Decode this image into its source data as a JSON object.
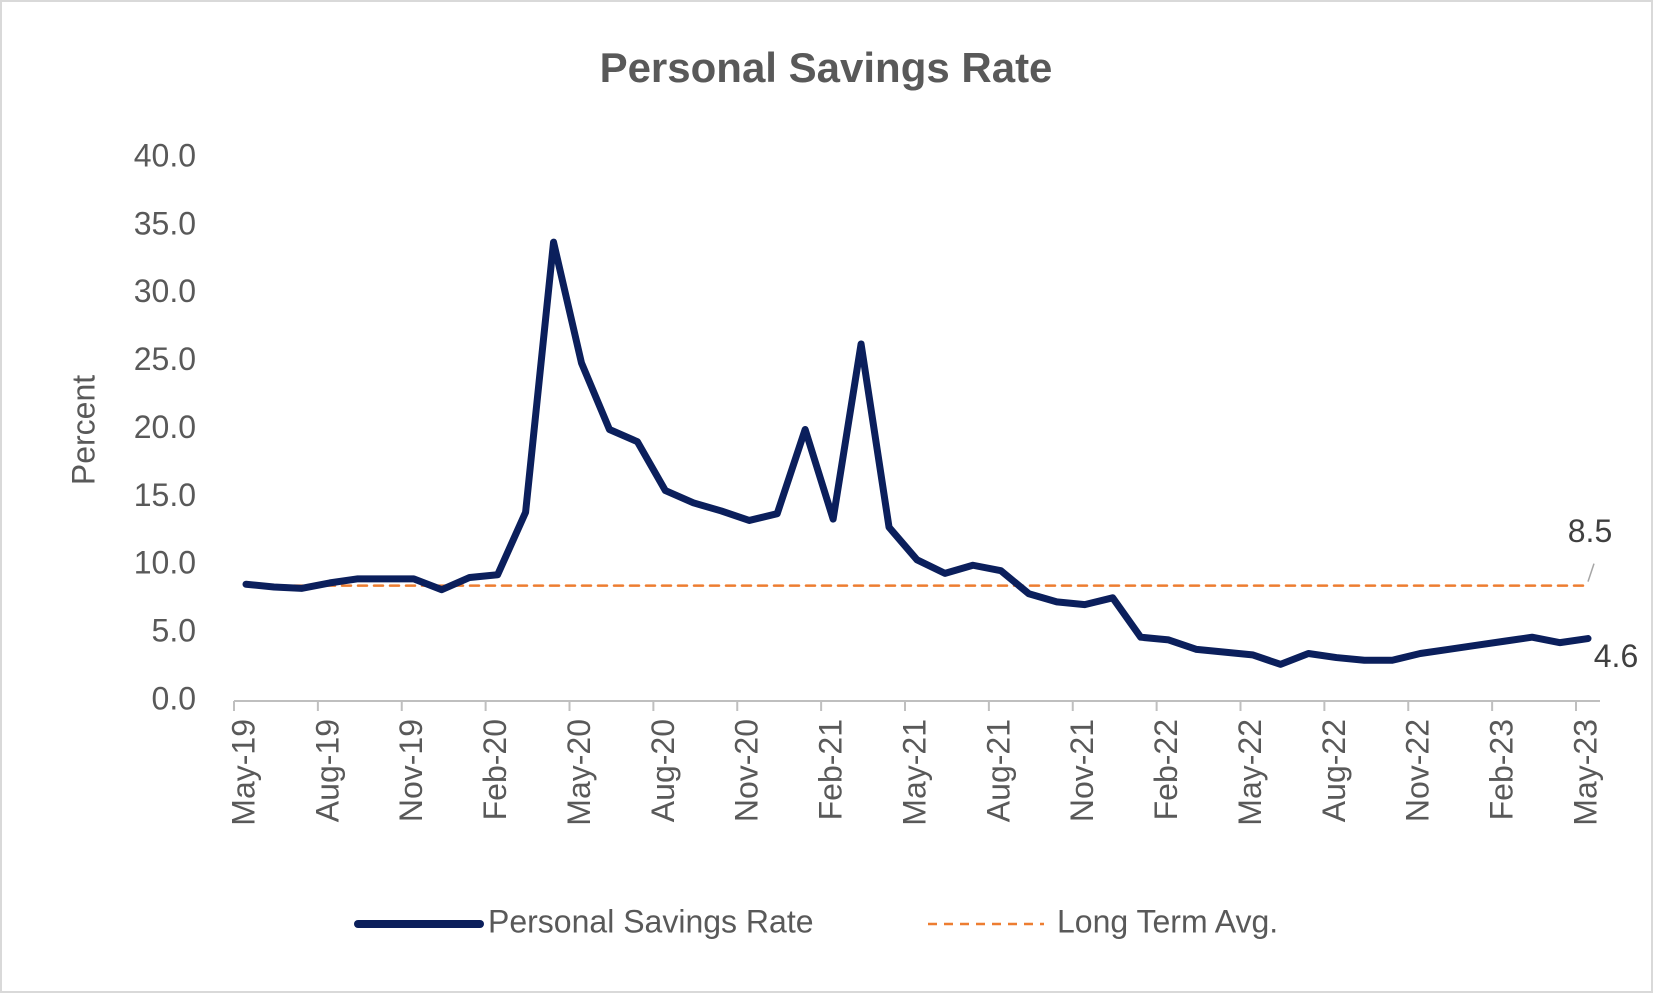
{
  "chart_data": {
    "type": "line",
    "title": "Personal Savings Rate",
    "y_label": "Percent",
    "categories": [
      "May-19",
      null,
      null,
      "Aug-19",
      null,
      null,
      "Nov-19",
      null,
      null,
      "Feb-20",
      null,
      null,
      "May-20",
      null,
      null,
      "Aug-20",
      null,
      null,
      "Nov-20",
      null,
      null,
      "Feb-21",
      null,
      null,
      "May-21",
      null,
      null,
      "Aug-21",
      null,
      null,
      "Nov-21",
      null,
      null,
      "Feb-22",
      null,
      null,
      "May-22",
      null,
      null,
      "Aug-22",
      null,
      null,
      "Nov-22",
      null,
      null,
      "Feb-23",
      null,
      null,
      "May-23"
    ],
    "series": [
      {
        "name": "Personal Savings Rate",
        "color": "#0b1f5c",
        "values": [
          8.6,
          8.4,
          8.3,
          8.7,
          9.0,
          9.0,
          9.0,
          8.2,
          9.1,
          9.3,
          13.9,
          33.8,
          24.9,
          20.0,
          19.1,
          15.5,
          14.6,
          14.0,
          13.3,
          13.8,
          20.0,
          13.4,
          26.3,
          12.8,
          10.4,
          9.4,
          10.0,
          9.6,
          7.9,
          7.3,
          7.1,
          7.6,
          4.7,
          4.5,
          3.8,
          3.6,
          3.4,
          2.7,
          3.5,
          3.2,
          3.0,
          3.0,
          3.5,
          3.8,
          4.1,
          4.4,
          4.7,
          4.3,
          4.6
        ]
      },
      {
        "name": "Long Term Avg.",
        "color": "#ed7d31",
        "dashed": true,
        "values": [
          8.5,
          8.5,
          8.5,
          8.5,
          8.5,
          8.5,
          8.5,
          8.5,
          8.5,
          8.5,
          8.5,
          8.5,
          8.5,
          8.5,
          8.5,
          8.5,
          8.5,
          8.5,
          8.5,
          8.5,
          8.5,
          8.5,
          8.5,
          8.5,
          8.5,
          8.5,
          8.5,
          8.5,
          8.5,
          8.5,
          8.5,
          8.5,
          8.5,
          8.5,
          8.5,
          8.5,
          8.5,
          8.5,
          8.5,
          8.5,
          8.5,
          8.5,
          8.5,
          8.5,
          8.5,
          8.5,
          8.5,
          8.5,
          8.5
        ]
      }
    ],
    "ylim": [
      0,
      40
    ],
    "yticks": [
      {
        "value": 0,
        "label": "0.0"
      },
      {
        "value": 5,
        "label": "5.0"
      },
      {
        "value": 10,
        "label": "10.0"
      },
      {
        "value": 15,
        "label": "15.0"
      },
      {
        "value": 20,
        "label": "20.0"
      },
      {
        "value": 25,
        "label": "25.0"
      },
      {
        "value": 30,
        "label": "30.0"
      },
      {
        "value": 35,
        "label": "35.0"
      },
      {
        "value": 40,
        "label": "40.0"
      }
    ],
    "grid": false,
    "legend": "bottom"
  }
}
